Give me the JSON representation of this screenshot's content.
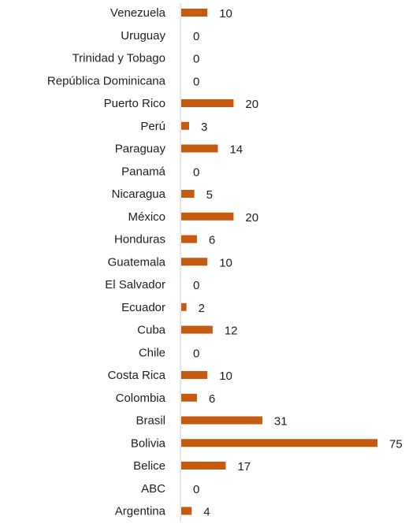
{
  "chart_data": {
    "type": "bar",
    "orientation": "horizontal",
    "categories": [
      "Venezuela",
      "Uruguay",
      "Trinidad y Tobago",
      "República Dominicana",
      "Puerto Rico",
      "Perú",
      "Paraguay",
      "Panamá",
      "Nicaragua",
      "México",
      "Honduras",
      "Guatemala",
      "El Salvador",
      "Ecuador",
      "Cuba",
      "Chile",
      "Costa Rica",
      "Colombia",
      "Brasil",
      "Bolivia",
      "Belice",
      "ABC",
      "Argentina"
    ],
    "values": [
      10,
      0,
      0,
      0,
      20,
      3,
      14,
      0,
      5,
      20,
      6,
      10,
      0,
      2,
      12,
      0,
      10,
      6,
      31,
      75,
      17,
      0,
      4
    ],
    "data_labels": [
      "10",
      "0",
      "0",
      "0",
      "20",
      "3",
      "14",
      "0",
      "5",
      "20",
      "6",
      "10",
      "0",
      "2",
      "12",
      "0",
      "10",
      "6",
      "31",
      "75",
      "17",
      "0",
      "4"
    ],
    "title": "",
    "xlabel": "",
    "ylabel": "",
    "xlim": [
      0,
      75
    ],
    "grid": false,
    "colors": {
      "bar": "#c55a11",
      "axis": "#cfcfcf"
    }
  }
}
